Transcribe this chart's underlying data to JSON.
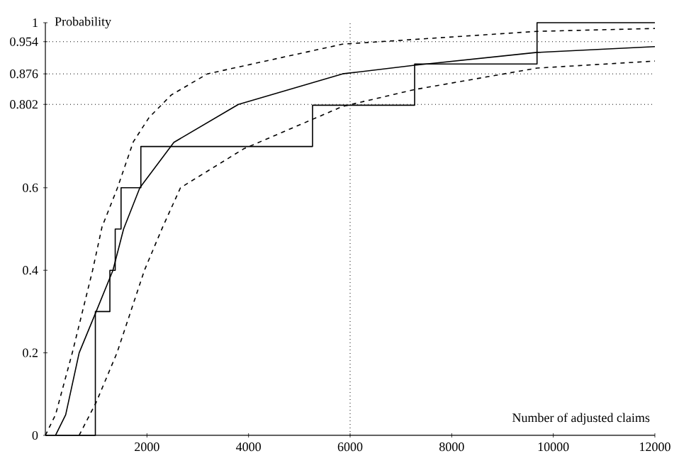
{
  "chart_data": {
    "type": "line",
    "ylabel": "Probability",
    "xlabel": "Number of adjusted claims",
    "xlim": [
      0,
      12000
    ],
    "ylim": [
      0,
      1
    ],
    "xticks": [
      2000,
      4000,
      6000,
      8000,
      10000,
      12000
    ],
    "yticks": [
      0,
      0.2,
      0.4,
      0.6,
      0.802,
      0.876,
      0.954,
      1
    ],
    "marker": "none",
    "ref_lines": [
      {
        "axis": "y",
        "value": 0.954,
        "line_style": "dotted"
      },
      {
        "axis": "y",
        "value": 0.876,
        "line_style": "dotted"
      },
      {
        "axis": "y",
        "value": 0.802,
        "line_style": "dotted"
      },
      {
        "axis": "x",
        "value": 6000,
        "line_style": "dotted"
      }
    ],
    "series": [
      {
        "type": "step",
        "color": "#000000",
        "line_style": "solid",
        "x": [
          0,
          984,
          1270,
          1375,
          1490,
          1880,
          5260,
          7270,
          9680,
          12000
        ],
        "values": [
          0,
          0.3,
          0.4,
          0.5,
          0.6,
          0.7,
          0.8,
          0.9,
          1.0,
          1.0
        ]
      },
      {
        "color": "#000000",
        "line_style": "solid",
        "x": [
          200,
          400,
          665,
          1000,
          1330,
          1540,
          1860,
          2530,
          3800,
          5850,
          7270,
          9680,
          12000
        ],
        "values": [
          0,
          0.05,
          0.2,
          0.3,
          0.4,
          0.5,
          0.6,
          0.71,
          0.802,
          0.876,
          0.897,
          0.928,
          0.942
        ]
      },
      {
        "color": "#000000",
        "line_style": "dashed",
        "x": [
          0,
          200,
          530,
          930,
          1115,
          1420,
          1730,
          2040,
          2480,
          3190,
          5850,
          9680,
          12000
        ],
        "values": [
          0,
          0.05,
          0.2,
          0.4,
          0.505,
          0.6,
          0.711,
          0.77,
          0.825,
          0.876,
          0.948,
          0.979,
          0.986
        ]
      },
      {
        "color": "#000000",
        "line_style": "dashed",
        "x": [
          665,
          1000,
          1410,
          1950,
          2310,
          2660,
          3900,
          5850,
          7270,
          9680,
          12000
        ],
        "values": [
          0,
          0.08,
          0.2,
          0.4,
          0.505,
          0.6,
          0.694,
          0.797,
          0.838,
          0.89,
          0.907
        ]
      }
    ]
  }
}
